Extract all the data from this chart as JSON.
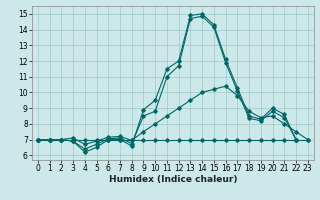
{
  "title": "",
  "xlabel": "Humidex (Indice chaleur)",
  "xlim": [
    -0.5,
    23.5
  ],
  "ylim": [
    5.7,
    15.5
  ],
  "yticks": [
    6,
    7,
    8,
    9,
    10,
    11,
    12,
    13,
    14,
    15
  ],
  "xticks": [
    0,
    1,
    2,
    3,
    4,
    5,
    6,
    7,
    8,
    9,
    10,
    11,
    12,
    13,
    14,
    15,
    16,
    17,
    18,
    19,
    20,
    21,
    22,
    23
  ],
  "background_color": "#cde8e8",
  "grid_color": "#a8cccc",
  "line_color": "#006666",
  "series": [
    [
      7.0,
      7.0,
      7.0,
      6.9,
      6.2,
      6.5,
      7.0,
      7.0,
      6.6,
      8.9,
      9.5,
      11.5,
      12.0,
      14.9,
      15.0,
      14.3,
      12.1,
      10.3,
      8.5,
      8.3,
      9.0,
      8.6,
      7.0,
      null
    ],
    [
      7.0,
      7.0,
      7.0,
      6.9,
      6.4,
      6.7,
      7.05,
      7.1,
      6.75,
      8.5,
      8.8,
      11.0,
      11.7,
      14.7,
      14.85,
      14.15,
      11.9,
      10.1,
      8.35,
      8.2,
      8.8,
      8.4,
      7.0,
      null
    ],
    [
      7.0,
      7.0,
      7.0,
      7.1,
      6.7,
      6.9,
      7.15,
      7.2,
      6.95,
      7.5,
      8.0,
      8.5,
      9.0,
      9.5,
      10.0,
      10.2,
      10.4,
      9.8,
      8.8,
      8.4,
      8.5,
      8.0,
      7.5,
      7.0
    ],
    [
      7.0,
      7.0,
      7.0,
      7.0,
      7.0,
      7.0,
      7.0,
      7.0,
      7.0,
      7.0,
      7.0,
      7.0,
      7.0,
      7.0,
      7.0,
      7.0,
      7.0,
      7.0,
      7.0,
      7.0,
      7.0,
      7.0,
      7.0,
      7.0
    ]
  ]
}
